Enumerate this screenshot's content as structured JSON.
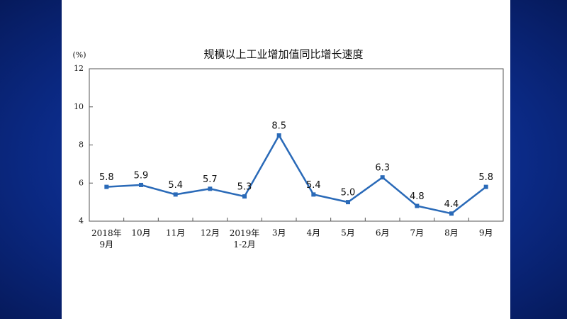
{
  "chart_data": {
    "type": "line",
    "title": "规模以上工业增加值同比增长速度",
    "y_label": "(%)",
    "categories": [
      "2018年\n9月",
      "10月",
      "11月",
      "12月",
      "2019年\n1-2月",
      "3月",
      "4月",
      "5月",
      "6月",
      "7月",
      "8月",
      "9月"
    ],
    "values": [
      5.8,
      5.9,
      5.4,
      5.7,
      5.3,
      8.5,
      5.4,
      5.0,
      6.3,
      4.8,
      4.4,
      5.8
    ],
    "value_labels": [
      "5.8",
      "5.9",
      "5.4",
      "5.7",
      "5.3",
      "8.5",
      "5.4",
      "5.0",
      "6.3",
      "4.8",
      "4.4",
      "5.8"
    ],
    "color": "#2a6ab8",
    "ylim": [
      4,
      12
    ],
    "yticks": [
      4,
      6,
      8,
      10,
      12
    ],
    "grid": false
  }
}
